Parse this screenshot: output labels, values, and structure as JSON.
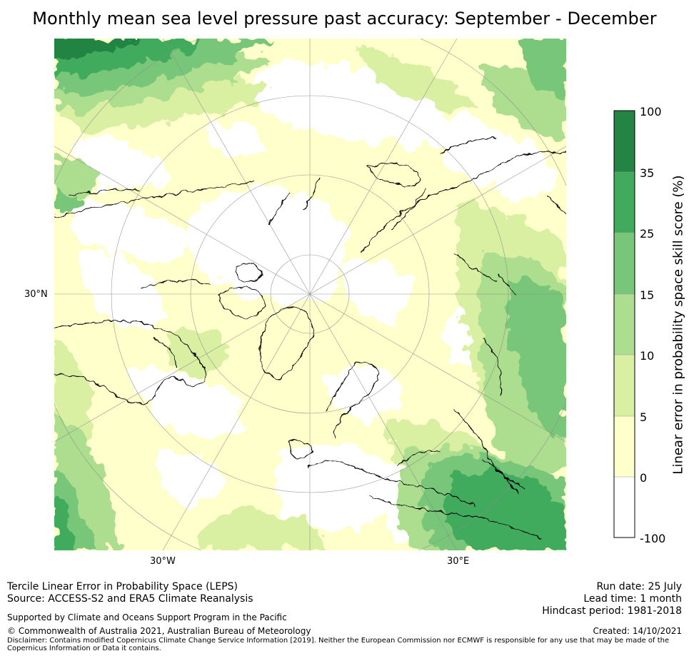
{
  "title": "Monthly mean sea level pressure past accuracy: September - December",
  "map": {
    "projection": "north-polar-stereographic",
    "lat_labels": [
      "30°N"
    ],
    "lon_labels": [
      "30°W",
      "30°E"
    ],
    "colors": {
      "white": "#ffffff",
      "c0_5": "#ffffcc",
      "c5_10": "#d9f0a3",
      "c10_15": "#addd8e",
      "c15_25": "#78c679",
      "c25_35": "#41ab5d",
      "c35_100": "#238443",
      "coast": "#000000",
      "grid": "#999999"
    }
  },
  "colorbar": {
    "label": "Linear error in probability space skill score (%)",
    "ticks": [
      "100",
      "35",
      "25",
      "15",
      "10",
      "5",
      "0",
      "-100"
    ],
    "bands": [
      {
        "from": 35,
        "to": 100,
        "color": "#238443"
      },
      {
        "from": 25,
        "to": 35,
        "color": "#41ab5d"
      },
      {
        "from": 15,
        "to": 25,
        "color": "#78c679"
      },
      {
        "from": 10,
        "to": 15,
        "color": "#addd8e"
      },
      {
        "from": 5,
        "to": 10,
        "color": "#d9f0a3"
      },
      {
        "from": 0,
        "to": 5,
        "color": "#ffffcc"
      },
      {
        "from": -100,
        "to": 0,
        "color": "#ffffff"
      }
    ]
  },
  "footer": {
    "left_line1": "Tercile Linear Error in Probability Space (LEPS)",
    "left_line2": "Source: ACCESS-S2 and ERA5 Climate Reanalysis",
    "support": "Supported by Climate and Oceans Support Program in the Pacific",
    "copyright": "© Commonwealth of Australia 2021, Australian Bureau of Meteorology",
    "disclaimer": "Disclaimer: Contains modified Copernicus Climate Change Service Information [2019]. Neither the European Commission nor ECMWF is responsible for any use that may be made of the Copernicus Information or Data it contains.",
    "run_date": "Run date: 25 July",
    "lead_time": "Lead time: 1 month",
    "hindcast": "Hindcast period: 1981-2018",
    "created": "Created: 14/10/2021"
  }
}
